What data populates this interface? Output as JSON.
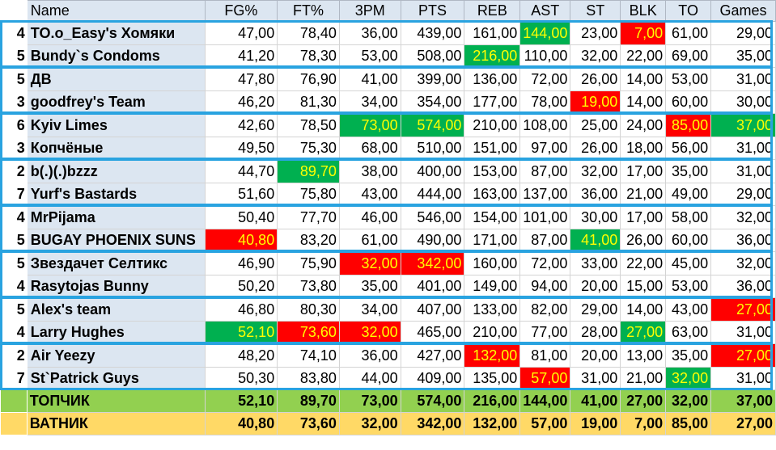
{
  "header": {
    "name": "Name",
    "columns": [
      "FG%",
      "FT%",
      "3PM",
      "PTS",
      "REB",
      "AST",
      "ST",
      "BLK",
      "TO",
      "Games"
    ]
  },
  "colors": {
    "best": "#00b050",
    "worst": "#ff0000",
    "best_text": "#ffff00",
    "top_row": "#92d050",
    "bottom_row": "#ffd966",
    "group_frame": "#29a3e0"
  },
  "teams": [
    {
      "rank": "4",
      "name": "TO.o_Easy's Хомяки",
      "values": [
        "47,00",
        "78,40",
        "36,00",
        "439,00",
        "161,00",
        "144,00",
        "23,00",
        "7,00",
        "61,00",
        "29,00"
      ],
      "highlight": {
        "AST": "green",
        "BLK": "red"
      }
    },
    {
      "rank": "5",
      "name": "Bundy`s Condoms",
      "values": [
        "41,20",
        "78,30",
        "53,00",
        "508,00",
        "216,00",
        "110,00",
        "32,00",
        "22,00",
        "69,00",
        "35,00"
      ],
      "highlight": {
        "REB": "green"
      }
    },
    {
      "rank": "5",
      "name": "ДВ",
      "values": [
        "47,80",
        "76,90",
        "41,00",
        "399,00",
        "136,00",
        "72,00",
        "26,00",
        "14,00",
        "53,00",
        "31,00"
      ],
      "highlight": {}
    },
    {
      "rank": "3",
      "name": "goodfrey's Team",
      "values": [
        "46,20",
        "81,30",
        "34,00",
        "354,00",
        "177,00",
        "78,00",
        "19,00",
        "14,00",
        "60,00",
        "30,00"
      ],
      "highlight": {
        "ST": "red"
      }
    },
    {
      "rank": "6",
      "name": "Kyiv Limes",
      "values": [
        "42,60",
        "78,50",
        "73,00",
        "574,00",
        "210,00",
        "108,00",
        "25,00",
        "24,00",
        "85,00",
        "37,00"
      ],
      "highlight": {
        "3PM": "green",
        "PTS": "green",
        "TO": "red",
        "Games": "green"
      }
    },
    {
      "rank": "3",
      "name": "Копчёные",
      "values": [
        "49,50",
        "75,30",
        "68,00",
        "510,00",
        "151,00",
        "97,00",
        "26,00",
        "18,00",
        "56,00",
        "31,00"
      ],
      "highlight": {}
    },
    {
      "rank": "2",
      "name": "b(.)(.)bzzz",
      "values": [
        "44,70",
        "89,70",
        "38,00",
        "400,00",
        "153,00",
        "87,00",
        "32,00",
        "17,00",
        "35,00",
        "31,00"
      ],
      "highlight": {
        "FT%": "green"
      }
    },
    {
      "rank": "7",
      "name": "Yurf's Bastards",
      "values": [
        "51,60",
        "75,80",
        "43,00",
        "444,00",
        "163,00",
        "137,00",
        "36,00",
        "21,00",
        "49,00",
        "29,00"
      ],
      "highlight": {}
    },
    {
      "rank": "4",
      "name": "MrPijama",
      "values": [
        "50,40",
        "77,70",
        "46,00",
        "546,00",
        "154,00",
        "101,00",
        "30,00",
        "17,00",
        "58,00",
        "32,00"
      ],
      "highlight": {}
    },
    {
      "rank": "5",
      "name": "BUGAY PHOENIX SUNS",
      "values": [
        "40,80",
        "83,20",
        "61,00",
        "490,00",
        "171,00",
        "87,00",
        "41,00",
        "26,00",
        "60,00",
        "36,00"
      ],
      "highlight": {
        "FG%": "red",
        "ST": "green"
      }
    },
    {
      "rank": "5",
      "name": "Звездачет Селтикс",
      "values": [
        "46,90",
        "75,90",
        "32,00",
        "342,00",
        "160,00",
        "72,00",
        "33,00",
        "22,00",
        "45,00",
        "32,00"
      ],
      "highlight": {
        "3PM": "red",
        "PTS": "red"
      }
    },
    {
      "rank": "4",
      "name": "Rasytojas Bunny",
      "values": [
        "50,20",
        "73,80",
        "35,00",
        "401,00",
        "149,00",
        "94,00",
        "20,00",
        "15,00",
        "53,00",
        "36,00"
      ],
      "highlight": {}
    },
    {
      "rank": "5",
      "name": "Alex's team",
      "values": [
        "46,80",
        "80,30",
        "34,00",
        "407,00",
        "133,00",
        "82,00",
        "29,00",
        "14,00",
        "43,00",
        "27,00"
      ],
      "highlight": {
        "Games": "red"
      }
    },
    {
      "rank": "4",
      "name": "Larry Hughes",
      "values": [
        "52,10",
        "73,60",
        "32,00",
        "465,00",
        "210,00",
        "77,00",
        "28,00",
        "27,00",
        "63,00",
        "31,00"
      ],
      "highlight": {
        "FG%": "green",
        "FT%": "red",
        "3PM": "red",
        "BLK": "green"
      }
    },
    {
      "rank": "2",
      "name": "Air Yeezy",
      "values": [
        "48,20",
        "74,10",
        "36,00",
        "427,00",
        "132,00",
        "81,00",
        "20,00",
        "13,00",
        "35,00",
        "27,00"
      ],
      "highlight": {
        "REB": "red",
        "Games": "red"
      }
    },
    {
      "rank": "7",
      "name": "St`Patrick Guys",
      "values": [
        "50,30",
        "83,80",
        "44,00",
        "409,00",
        "135,00",
        "57,00",
        "31,00",
        "21,00",
        "32,00",
        "31,00"
      ],
      "highlight": {
        "AST": "red",
        "TO": "green"
      }
    }
  ],
  "summary": [
    {
      "label": "ТОПЧИК",
      "values": [
        "52,10",
        "89,70",
        "73,00",
        "574,00",
        "216,00",
        "144,00",
        "41,00",
        "27,00",
        "32,00",
        "37,00"
      ]
    },
    {
      "label": "ВАТНИК",
      "values": [
        "40,80",
        "73,60",
        "32,00",
        "342,00",
        "132,00",
        "57,00",
        "19,00",
        "7,00",
        "85,00",
        "27,00"
      ]
    }
  ]
}
